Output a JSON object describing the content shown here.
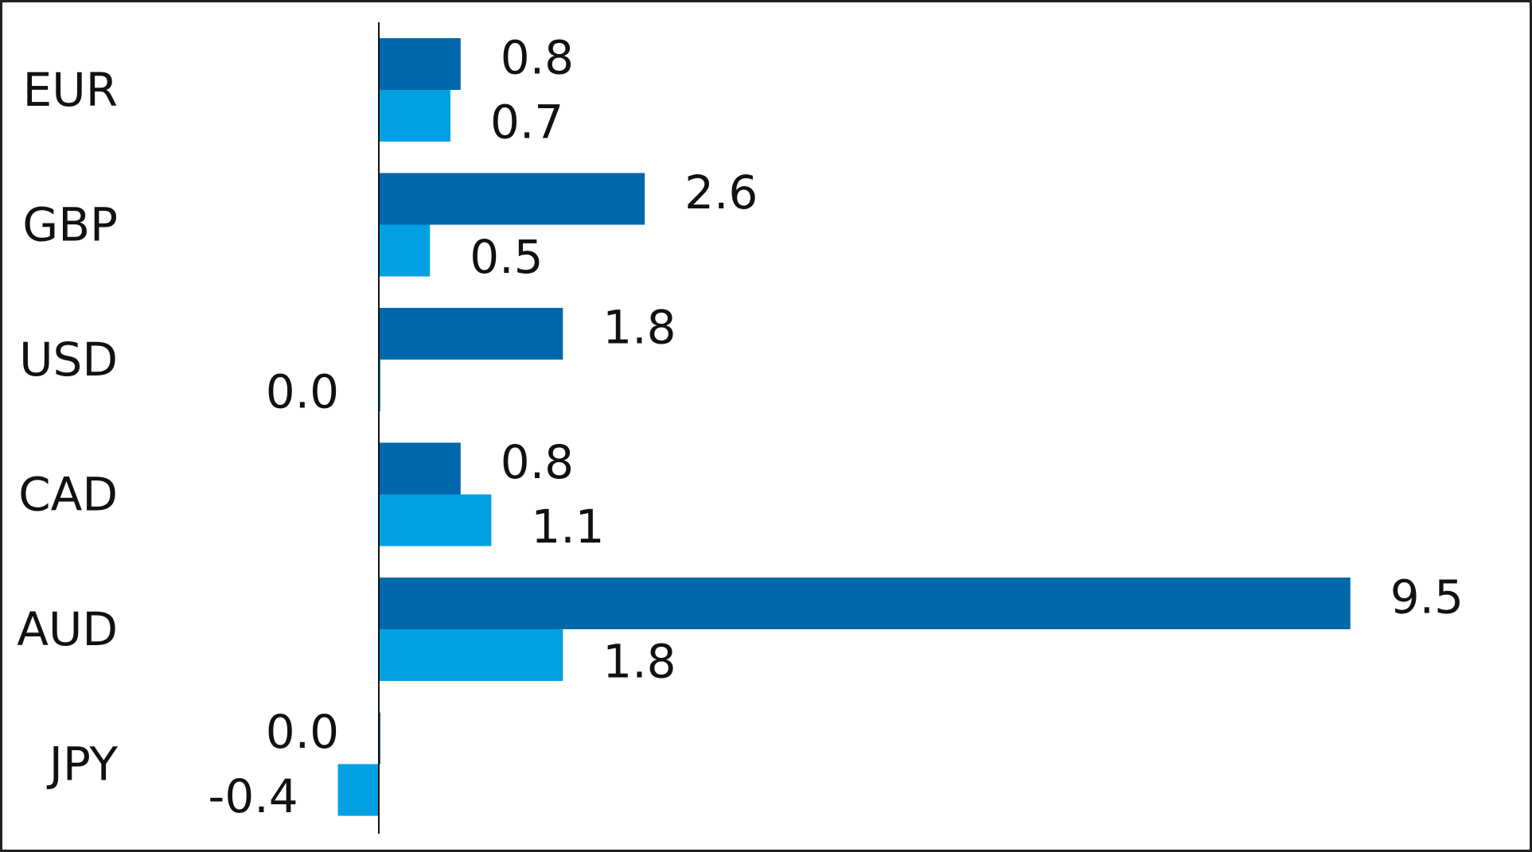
{
  "chart_data": {
    "type": "bar",
    "orientation": "horizontal",
    "categories": [
      "EUR",
      "GBP",
      "USD",
      "CAD",
      "AUD",
      "JPY"
    ],
    "series": [
      {
        "values": [
          0.8,
          2.6,
          1.8,
          0.8,
          9.5,
          0.0
        ],
        "color": "#0068AA"
      },
      {
        "values": [
          0.7,
          0.5,
          0.0,
          1.1,
          1.8,
          -0.4
        ],
        "color": "#00A0E3"
      }
    ],
    "value_labels": [
      [
        "0.8",
        "2.6",
        "1.8",
        "0.8",
        "9.5",
        "0.0"
      ],
      [
        "0.7",
        "0.5",
        "0.0",
        "1.1",
        "1.8",
        "-0.4"
      ]
    ],
    "title": "",
    "xlabel": "",
    "ylabel": "",
    "xlim": [
      -1.5,
      11.0
    ],
    "grid": false,
    "legend": "none"
  }
}
